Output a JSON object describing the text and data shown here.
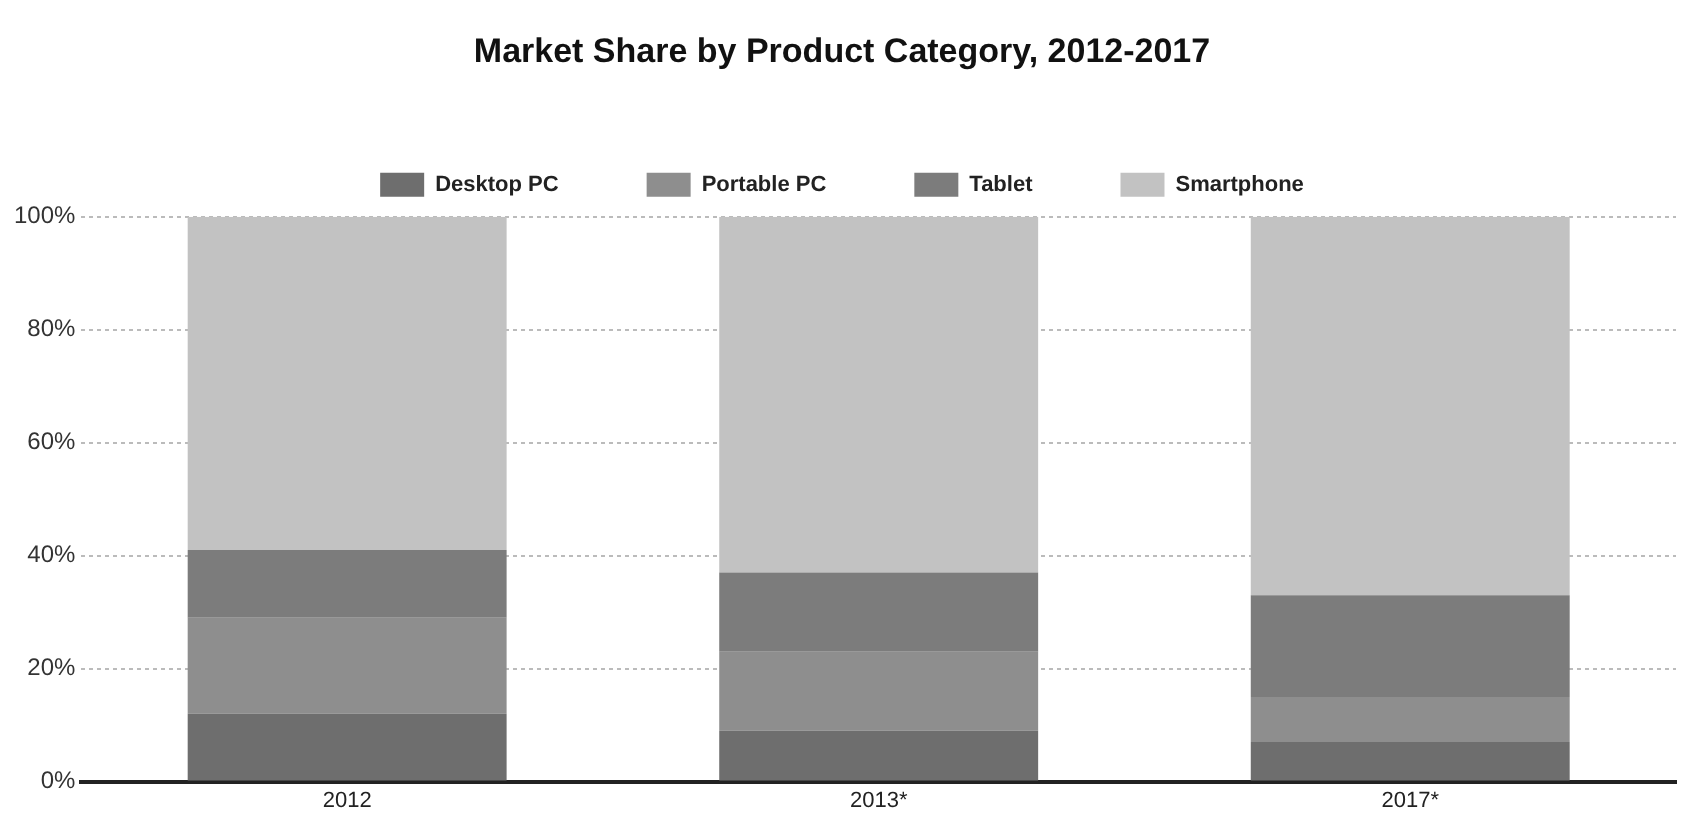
{
  "chart_data": {
    "type": "bar",
    "stacked": true,
    "title": "Market Share by Product Category, 2012-2017",
    "categories": [
      "2012",
      "2013*",
      "2017*"
    ],
    "series": [
      {
        "name": "Desktop PC",
        "color": "#6e6e6e",
        "values": [
          12,
          9,
          7
        ]
      },
      {
        "name": "Portable PC",
        "color": "#8e8e8e",
        "values": [
          17,
          14,
          8
        ]
      },
      {
        "name": "Tablet",
        "color": "#7c7c7c",
        "values": [
          12,
          14,
          18
        ]
      },
      {
        "name": "Smartphone",
        "color": "#c2c2c2",
        "values": [
          59,
          63,
          67
        ]
      }
    ],
    "ylim": [
      0,
      100
    ],
    "yticks": [
      {
        "value": 0,
        "label": "0%"
      },
      {
        "value": 20,
        "label": "20%"
      },
      {
        "value": 40,
        "label": "40%"
      },
      {
        "value": 60,
        "label": "60%"
      },
      {
        "value": 80,
        "label": "80%"
      },
      {
        "value": 100,
        "label": "100%"
      }
    ],
    "grid": "y",
    "legend": "top"
  }
}
